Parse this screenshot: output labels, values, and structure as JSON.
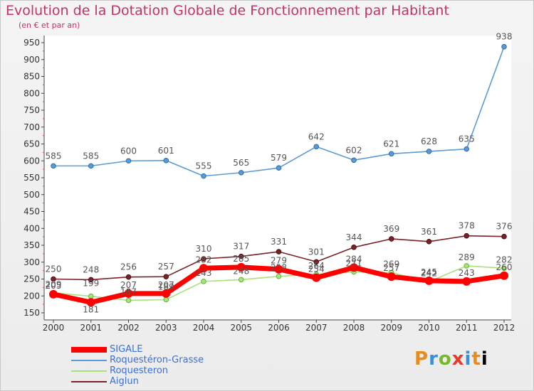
{
  "chart_data": {
    "type": "line",
    "title": "Evolution de la Dotation Globale de Fonctionnement par Habitant",
    "subtitle": "(en € et par an)",
    "xlabel": "",
    "ylabel": "",
    "x": [
      "2000",
      "2001",
      "2002",
      "2003",
      "2004",
      "2005",
      "2006",
      "2007",
      "2008",
      "2009",
      "2010",
      "2011",
      "2012"
    ],
    "ylim": [
      150,
      950
    ],
    "yticks": [
      150,
      200,
      250,
      300,
      350,
      400,
      450,
      500,
      550,
      600,
      650,
      700,
      750,
      800,
      850,
      900,
      950
    ],
    "grid": false,
    "legend_position": "bottom-left",
    "series": [
      {
        "name": "Roquestéron-Grasse",
        "color": "#5b9bd5",
        "values": [
          585,
          585,
          600,
          601,
          555,
          565,
          579,
          642,
          602,
          621,
          628,
          635,
          938
        ]
      },
      {
        "name": "Roquesteron",
        "color": "#a8e27a",
        "values": [
          209,
          199,
          187,
          189,
          243,
          248,
          258,
          264,
          271,
          269,
          242,
          289,
          282
        ]
      },
      {
        "name": "Aiglun",
        "color": "#7b2226",
        "values": [
          250,
          248,
          256,
          257,
          310,
          317,
          331,
          301,
          344,
          369,
          361,
          378,
          376
        ]
      },
      {
        "name": "SIGALE",
        "color": "#ff0000",
        "values": [
          205,
          181,
          207,
          207,
          282,
          285,
          279,
          254,
          284,
          257,
          245,
          243,
          260
        ]
      }
    ],
    "labels": {
      "Roquestéron-Grasse": [
        "585",
        "585",
        "600",
        "601",
        "555",
        "565",
        "579",
        "642",
        "602",
        "621",
        "628",
        "635",
        "938"
      ],
      "Aiglun": [
        "250",
        "248",
        "256",
        "257",
        "310",
        "317",
        "331",
        "301",
        "344",
        "369",
        "361",
        "378",
        "376"
      ],
      "Roquesteron": [
        "209",
        "199",
        "187",
        "189",
        "243",
        "248",
        "258",
        "264",
        "271",
        "269",
        "242",
        "289",
        "282"
      ],
      "SIGALE": [
        "205",
        "181",
        "207",
        "207",
        "282",
        "285",
        "279",
        "254",
        "284",
        "257",
        "245",
        "243",
        "260"
      ]
    }
  },
  "legend": {
    "items": [
      {
        "label": "SIGALE",
        "color": "#ff0000"
      },
      {
        "label": "Roquestéron-Grasse",
        "color": "#5b9bd5"
      },
      {
        "label": "Roquesteron",
        "color": "#a8e27a"
      },
      {
        "label": "Aiglun",
        "color": "#7b2226"
      }
    ]
  },
  "logo": {
    "text": "Proxiti"
  }
}
